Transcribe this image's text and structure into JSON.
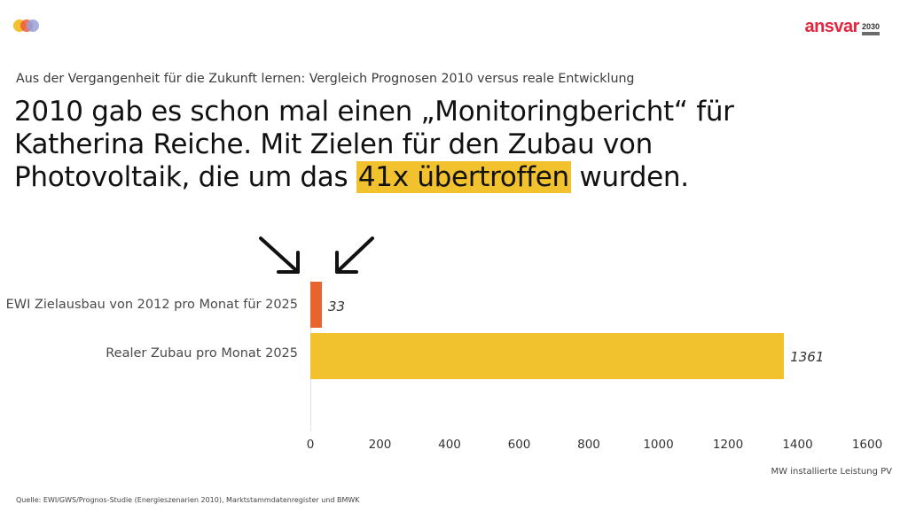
{
  "header": {
    "logo_left": "colored-dots-logo",
    "brand": {
      "name": "ansvar",
      "year": "2030",
      "color": "#e3263d"
    }
  },
  "subtitle": "Aus der Vergangenheit für die Zukunft lernen: Vergleich Prognosen 2010 versus reale Entwicklung",
  "headline": {
    "before": "2010 gab es schon mal einen „Monitoringbericht“ für Katherina Reiche. Mit Zielen für den Zubau von Photovoltaik, die um das ",
    "highlight": "41x übertroffen",
    "after": " wurden.",
    "highlight_color": "#f2c12e"
  },
  "annotations": {
    "arrows": [
      "arrow-down-right-icon",
      "arrow-down-left-icon"
    ]
  },
  "chart_data": {
    "type": "bar",
    "orientation": "horizontal",
    "title": "",
    "categories": [
      "EWI Zielausbau von 2012 pro Monat für 2025",
      "Realer Zubau pro Monat 2025"
    ],
    "values": [
      33,
      1361
    ],
    "value_labels": [
      "33",
      "1361"
    ],
    "colors": [
      "#e8632e",
      "#f2c12e"
    ],
    "xlabel": "MW installierte Leistung PV",
    "ylabel": "",
    "xlim": [
      0,
      1600
    ],
    "xticks": [
      "0",
      "200",
      "400",
      "600",
      "800",
      "1000",
      "1200",
      "1400",
      "1600"
    ],
    "grid": false,
    "legend": null
  },
  "source": "Quelle: EWI/GWS/Prognos-Studie (Energieszenarien 2010), Marktstammdatenregister und BMWK"
}
